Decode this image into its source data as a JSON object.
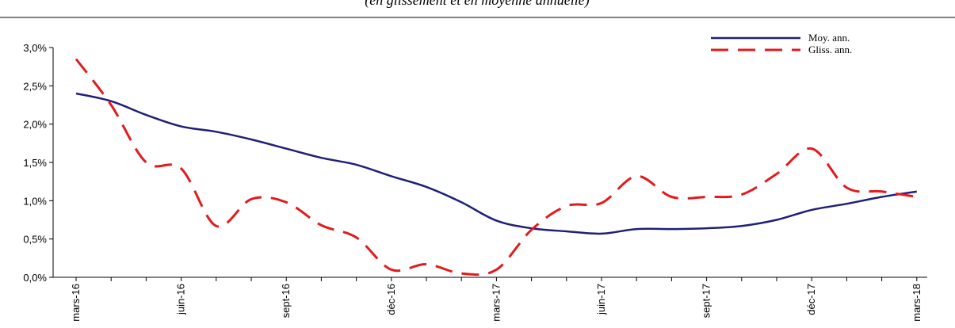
{
  "chart_data": {
    "type": "line",
    "title": "(en glissement et en moyenne annuelle)",
    "categories": [
      "mars-16",
      null,
      null,
      "juin-16",
      null,
      null,
      "sept-16",
      null,
      null,
      "déc-16",
      null,
      null,
      "mars-17",
      null,
      null,
      "juin-17",
      null,
      null,
      "sept-17",
      null,
      null,
      "déc-17",
      null,
      null,
      "mars-18"
    ],
    "series": [
      {
        "name": "Moy. ann.",
        "color": "#1f1f7a",
        "dash": "solid",
        "values": [
          2.4,
          2.3,
          2.12,
          1.97,
          1.9,
          1.8,
          1.68,
          1.56,
          1.47,
          1.32,
          1.18,
          0.98,
          0.74,
          0.64,
          0.6,
          0.57,
          0.63,
          0.63,
          0.64,
          0.67,
          0.75,
          0.88,
          0.96,
          1.05,
          1.12
        ]
      },
      {
        "name": "Gliss. ann.",
        "color": "#e31a1c",
        "dash": "dashed",
        "values": [
          2.85,
          2.25,
          1.5,
          1.42,
          0.67,
          1.02,
          0.98,
          0.68,
          0.52,
          0.1,
          0.17,
          0.05,
          0.1,
          0.62,
          0.93,
          0.97,
          1.32,
          1.05,
          1.05,
          1.08,
          1.35,
          1.68,
          1.17,
          1.12,
          1.05
        ]
      }
    ],
    "ylim": [
      0,
      3
    ],
    "yticks": [
      {
        "value": 0,
        "label": "0,0%"
      },
      {
        "value": 0.5,
        "label": "0,5%"
      },
      {
        "value": 1,
        "label": "1,0%"
      },
      {
        "value": 1.5,
        "label": "1,5%"
      },
      {
        "value": 2,
        "label": "2,0%"
      },
      {
        "value": 2.5,
        "label": "2,5%"
      },
      {
        "value": 3,
        "label": "3,0%"
      }
    ],
    "legend": "upper right",
    "grid": false
  }
}
